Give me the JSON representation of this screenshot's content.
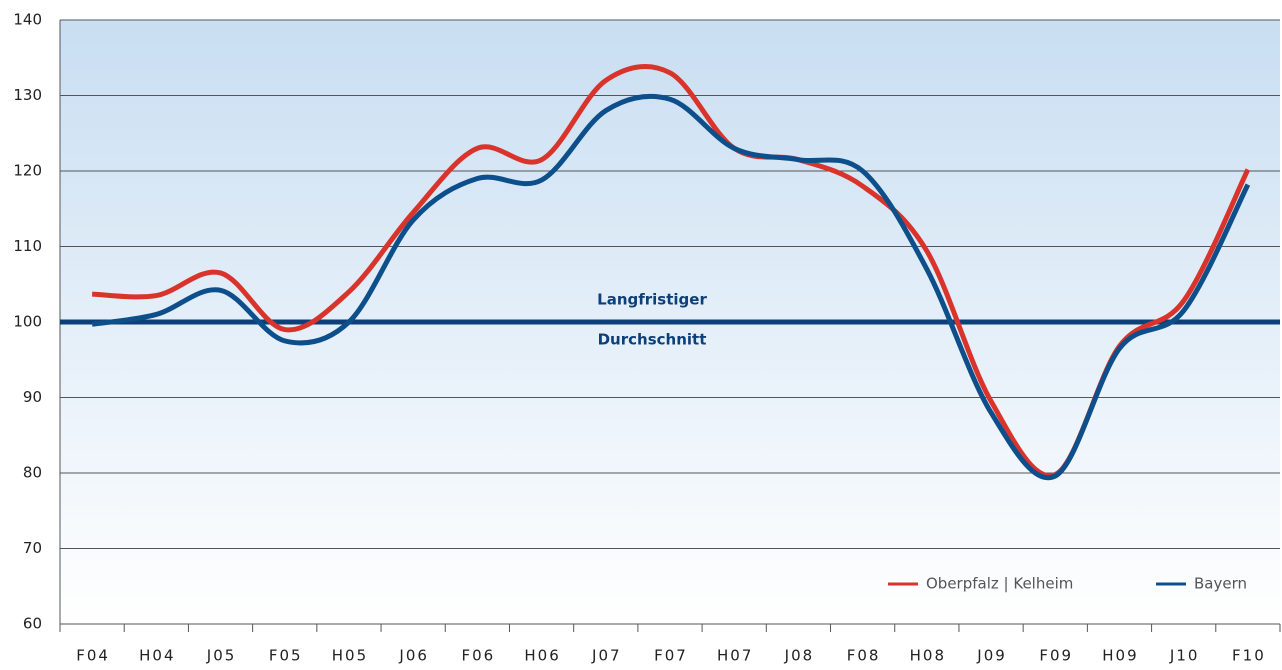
{
  "chart_data": {
    "type": "line",
    "categories": [
      "F04",
      "H04",
      "J05",
      "F05",
      "H05",
      "J06",
      "F06",
      "H06",
      "J07",
      "F07",
      "H07",
      "J08",
      "F08",
      "H08",
      "J09",
      "F09",
      "H09",
      "J10",
      "F10"
    ],
    "series": [
      {
        "name": "Oberpfalz | Kelheim",
        "color": "#d9342b",
        "values": [
          103.7,
          103.5,
          106.5,
          99,
          104,
          114.5,
          123,
          121.5,
          132,
          133,
          123,
          121.5,
          118,
          109.4,
          89.5,
          79.8,
          96.8,
          102.8,
          120.2
        ]
      },
      {
        "name": "Bayern",
        "color": "#0d4f8a",
        "values": [
          99.7,
          101,
          104.2,
          97.5,
          100,
          113.5,
          119,
          118.8,
          128,
          129.5,
          123,
          121.5,
          120,
          107,
          88,
          79.6,
          96.5,
          101.5,
          118.2
        ]
      }
    ],
    "reference_line": {
      "value": 100,
      "color": "#0d3f78",
      "label": [
        "Langfristiger",
        "Durchschnitt"
      ]
    },
    "ylim": [
      60,
      140
    ],
    "yticks": [
      60,
      70,
      80,
      90,
      100,
      110,
      120,
      130,
      140
    ],
    "grid": true,
    "legend": "lower right"
  }
}
